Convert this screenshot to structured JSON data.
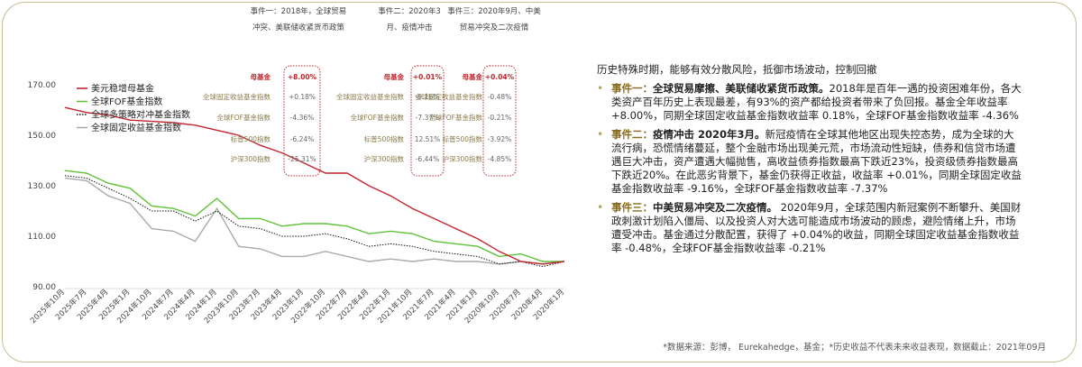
{
  "chart_data": {
    "type": "line",
    "ylim": [
      90,
      175
    ],
    "yticks": [
      "170.00",
      "150.00",
      "130.00",
      "110.00",
      "90.00"
    ],
    "x_labels": [
      "2025年10月",
      "2025年7月",
      "2025年4月",
      "2025年1月",
      "2024年10月",
      "2024年7月",
      "2024年4月",
      "2024年1月",
      "2023年10月",
      "2023年7月",
      "2023年4月",
      "2023年1月",
      "2022年10月",
      "2022年7月",
      "2022年4月",
      "2022年1月",
      "2021年10月",
      "2021年7月",
      "2021年4月",
      "2021年1月",
      "2020年10月",
      "2020年7月",
      "2020年4月",
      "2020年1月"
    ],
    "series": [
      {
        "name": "美元稳增母基金",
        "color": "#c0262d",
        "style": "solid",
        "values": [
          161,
          159,
          158,
          156,
          155.5,
          155,
          154,
          152,
          150,
          146,
          143,
          139,
          135,
          135,
          130,
          126,
          121,
          117,
          113,
          109,
          104,
          100,
          99,
          100
        ]
      },
      {
        "name": "全球FOF基金指数",
        "color": "#5fc23a",
        "style": "solid",
        "values": [
          136,
          135,
          131,
          129,
          122,
          121,
          118,
          125,
          117,
          117,
          114,
          115,
          115,
          114,
          111,
          112,
          111,
          108,
          107,
          106,
          102,
          103,
          100,
          100
        ]
      },
      {
        "name": "全球多策略对冲基金指数",
        "color": "#111111",
        "style": "dotted",
        "values": [
          134,
          133,
          129,
          125,
          120,
          120,
          116,
          120,
          114,
          113,
          110,
          110,
          111,
          109,
          106,
          107,
          106,
          104,
          103,
          102,
          99,
          100,
          98,
          100
        ]
      },
      {
        "name": "全球固定收益基金指数",
        "color": "#aaaaaa",
        "style": "solid",
        "values": [
          133,
          132,
          126,
          123,
          113,
          112,
          108,
          121,
          106,
          105,
          102,
          102,
          104,
          102,
          100,
          101,
          100,
          101,
          100,
          100,
          99,
          100,
          99,
          100
        ]
      }
    ]
  },
  "events": [
    {
      "title_lines": [
        "事件一：2018年，全球贸易",
        "冲突、美联储收紧货币政策"
      ],
      "rows": [
        {
          "label": "母基金",
          "value": "+8.00%",
          "highlight": true
        },
        {
          "label": "全球固定收益基金指数",
          "value": "+0.18%"
        },
        {
          "label": "全球FOF基金指数",
          "value": "-4.36%"
        },
        {
          "label": "标普500指数",
          "value": "-6.24%"
        },
        {
          "label": "沪深300指数",
          "value": "-25.31%"
        }
      ]
    },
    {
      "title_lines": [
        "事件二：2020年3",
        "月、疫情冲击"
      ],
      "rows": [
        {
          "label": "母基金",
          "value": "+0.01%",
          "highlight": true
        },
        {
          "label": "全球固定收益基金指数",
          "value": "-9.16%"
        },
        {
          "label": "全球FOF基金指数",
          "value": "-7.37%"
        },
        {
          "label": "标普500指数",
          "value": "12.51%"
        },
        {
          "label": "沪深300指数",
          "value": "-6.44%"
        }
      ]
    },
    {
      "title_lines": [
        "事件三：2020年9月、中美",
        "贸易冲突及二次疫情"
      ],
      "rows": [
        {
          "label": "母基金",
          "value": "+0.04%",
          "highlight": true
        },
        {
          "label": "全球固定收益基金指数",
          "value": "-0.48%"
        },
        {
          "label": "全球FOF基金指数",
          "value": "-0.21%"
        },
        {
          "label": "标普500指数",
          "value": "-3.92%"
        },
        {
          "label": "沪深300指数",
          "value": "-4.85%"
        }
      ]
    }
  ],
  "text_panel": {
    "intro": "历史特殊时期，能够有效分散风险，抵御市场波动，控制回撤",
    "items": [
      {
        "label": "事件一：",
        "head": "全球贸易摩擦、美联储收紧货币政策。",
        "body": "2018年是百年一遇的投资困难年份，各大类资产百年历史上表现最差，有93%的资产都给投资者带来了负回报。基金全年收益率 +8.00%，同期全球固定收益基金指数收益率 0.18%，全球FOF基金指数收益率 -4.36%"
      },
      {
        "label": "事件二：",
        "head": "疫情冲击 2020年3月。",
        "body": "新冠疫情在全球其他地区出现失控态势，成为全球的大流行病，恐慌情绪蔓延，整个金融市场出现美元荒，市场流动性短缺，债券和信贷市场遭遇巨大冲击，资产遭遇大幅抛售，高收益债券指数最高下跌近23%，投资级债券指数最高下跌近20%。在此恶劣背景下，基金仍获得正收益，收益率 +0.01%，同期全球固定收益基金指数收益率 -9.16%，全球FOF基金指数收益率 -7.37%"
      },
      {
        "label": "事件三：",
        "head": "中美贸易冲突及二次疫情。",
        "body": " 2020年9月，全球范围内新冠案例不断攀升、美国财政刺激计划陷入僵局、以及投资人对大选可能造成市场波动的顾虑，避险情绪上升，市场遭受冲击。基金通过分散配置，获得了 +0.04%的收益，同期全球固定收益基金指数收益率 -0.48%，全球FOF基金指数收益率 -0.21%"
      }
    ]
  },
  "footnote": "*数据来源：彭博， Eurekahedge，基金；*历史收益不代表未来收益表现，数据截止：2021年09月"
}
